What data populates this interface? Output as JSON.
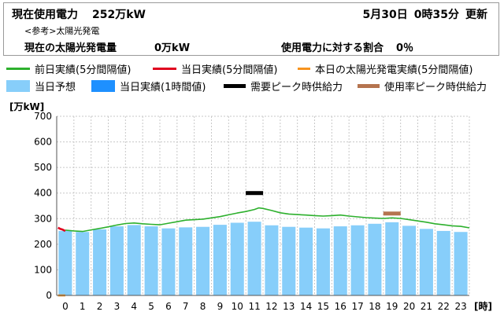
{
  "header": {
    "title": "現在使用電力",
    "current_value": "252万kW",
    "date": "5月30日",
    "time": "0時35分",
    "update_label": "更新",
    "note": "<参考>太陽光発電",
    "solar_label": "現在の太陽光発電量",
    "solar_value": "0万kW",
    "ratio_label": "使用電力に対する割合",
    "ratio_value": "0％"
  },
  "legend": [
    {
      "label": "前日実績(5分間隔値)",
      "color": "#2db02d",
      "kind": "line"
    },
    {
      "label": "当日実績(5分間隔値)",
      "color": "#e0001e",
      "kind": "line"
    },
    {
      "label": "本日の太陽光発電実績(5分間隔値)",
      "color": "#f7931e",
      "kind": "line"
    },
    {
      "label": "当日予想",
      "color": "#87cefa",
      "kind": "box"
    },
    {
      "label": "当日実績(1時間値)",
      "color": "#1e90ff",
      "kind": "box"
    },
    {
      "label": "需要ピーク時供給力",
      "color": "#000000",
      "kind": "thick"
    },
    {
      "label": "使用率ピーク時供給力",
      "color": "#b5744f",
      "kind": "thick"
    }
  ],
  "chart_data": {
    "type": "bar",
    "ylabel": "[万kW]",
    "xlabel": "[時]",
    "ylim": [
      0,
      700
    ],
    "yticks": [
      0,
      100,
      200,
      300,
      400,
      500,
      600,
      700
    ],
    "categories": [
      "0",
      "1",
      "2",
      "3",
      "4",
      "5",
      "6",
      "7",
      "8",
      "9",
      "10",
      "11",
      "12",
      "13",
      "14",
      "15",
      "16",
      "17",
      "18",
      "19",
      "20",
      "21",
      "22",
      "23"
    ],
    "grid": true,
    "series": [
      {
        "name": "当日予想",
        "kind": "bar",
        "color": "#87cefa",
        "values": [
          252,
          248,
          258,
          270,
          275,
          270,
          262,
          266,
          268,
          276,
          284,
          288,
          274,
          268,
          265,
          262,
          270,
          274,
          280,
          286,
          272,
          260,
          252,
          248
        ]
      },
      {
        "name": "前日実績(5分間隔値)",
        "kind": "line",
        "color": "#2db02d",
        "x": [
          0,
          0.5,
          1,
          1.5,
          2,
          2.5,
          3,
          3.5,
          4,
          4.5,
          5,
          5.5,
          6,
          6.5,
          7,
          7.5,
          8,
          8.5,
          9,
          9.5,
          10,
          10.5,
          11,
          11.25,
          11.5,
          12,
          12.5,
          13,
          13.5,
          14,
          14.5,
          15,
          15.5,
          16,
          16.5,
          17,
          17.5,
          18,
          18.5,
          19,
          19.5,
          20,
          20.5,
          21,
          21.5,
          22,
          22.5,
          23,
          23.5
        ],
        "values": [
          255,
          252,
          250,
          256,
          262,
          268,
          275,
          281,
          283,
          280,
          278,
          276,
          282,
          288,
          294,
          296,
          298,
          303,
          308,
          315,
          322,
          328,
          336,
          342,
          340,
          332,
          323,
          318,
          316,
          314,
          312,
          310,
          312,
          314,
          310,
          307,
          304,
          302,
          301,
          303,
          301,
          296,
          291,
          286,
          280,
          276,
          272,
          270,
          264
        ]
      },
      {
        "name": "当日実績(5分間隔値)",
        "kind": "line",
        "color": "#e0001e",
        "x": [
          -0.42,
          -0.3,
          -0.15,
          0.0
        ],
        "values": [
          265,
          260,
          257,
          252
        ]
      },
      {
        "name": "本日の太陽光発電実績(5分間隔値)",
        "kind": "line",
        "color": "#f7931e",
        "x": [
          -0.42,
          -0.2,
          0.0
        ],
        "values": [
          0,
          0,
          0
        ]
      },
      {
        "name": "需要ピーク時供給力",
        "kind": "marker",
        "color": "#000000",
        "x": 11,
        "value": 400
      },
      {
        "name": "使用率ピーク時供給力",
        "kind": "marker",
        "color": "#b5744f",
        "x": 19,
        "value": 320
      }
    ]
  }
}
